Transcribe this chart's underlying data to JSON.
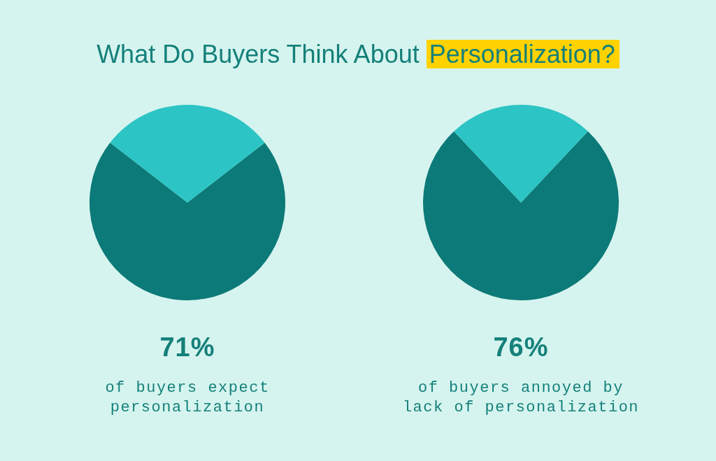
{
  "chart_data": [
    {
      "type": "pie",
      "title": "What Do Buyers Think About Personalization?",
      "categories": [
        null,
        null
      ],
      "values": [
        71,
        29
      ],
      "colors": [
        "#0c7a78",
        "#2cc4c4"
      ],
      "value_labels": [
        "71%",
        null
      ],
      "annotations": [
        "of buyers expect personalization"
      ]
    },
    {
      "type": "pie",
      "categories": [
        null,
        null
      ],
      "values": [
        76,
        24
      ],
      "colors": [
        "#0c7a78",
        "#2cc4c4"
      ],
      "value_labels": [
        "76%",
        null
      ],
      "annotations": [
        "of buyers annoyed by lack of personalization"
      ]
    }
  ]
}
